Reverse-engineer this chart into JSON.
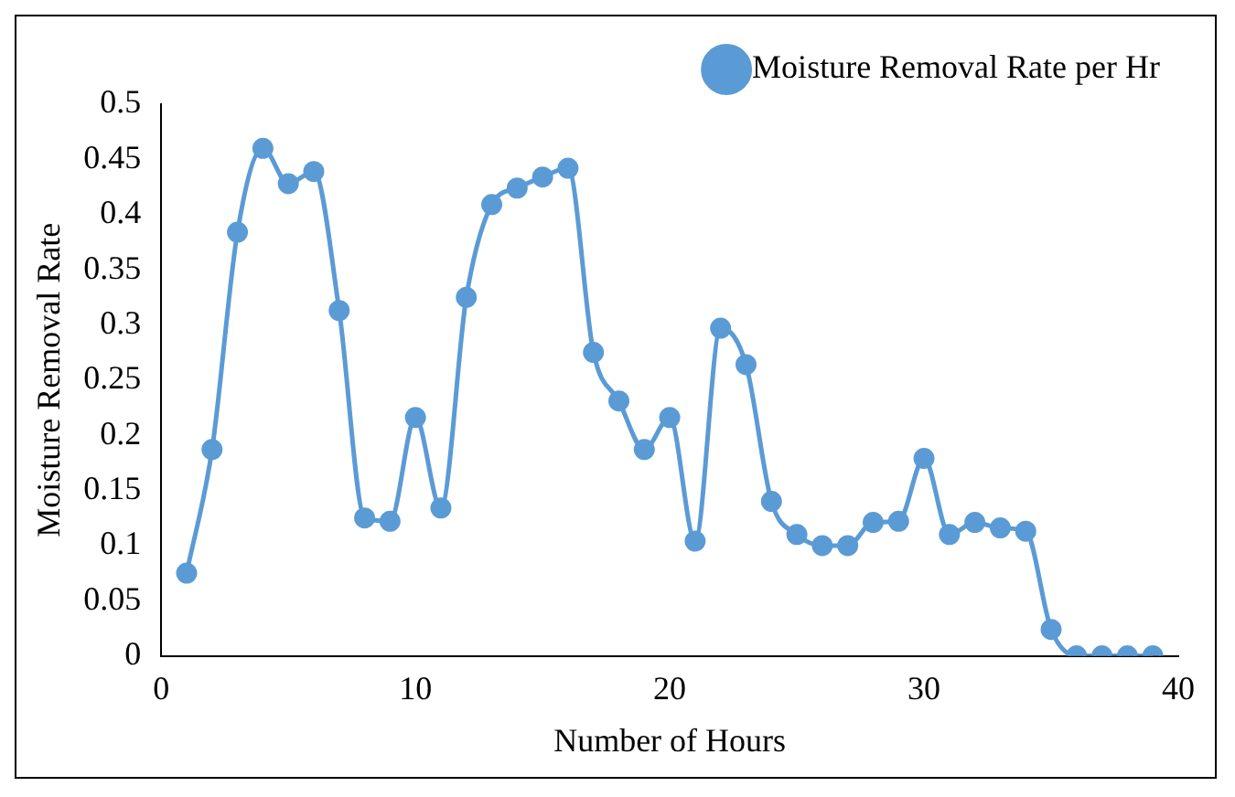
{
  "chart_data": {
    "type": "line",
    "xlabel": "Number of Hours",
    "ylabel": "Moisture Removal Rate",
    "x": [
      1,
      2,
      3,
      4,
      5,
      6,
      7,
      8,
      9,
      10,
      11,
      12,
      13,
      14,
      15,
      16,
      17,
      18,
      19,
      20,
      21,
      22,
      23,
      24,
      25,
      26,
      27,
      28,
      29,
      30,
      31,
      32,
      33,
      34,
      35,
      36,
      37,
      38,
      39
    ],
    "series": [
      {
        "name": "Moisture Removal Rate per Hr",
        "color": "#5b9bd5",
        "values": [
          0.075,
          0.187,
          0.384,
          0.46,
          0.428,
          0.439,
          0.313,
          0.125,
          0.122,
          0.216,
          0.134,
          0.325,
          0.409,
          0.424,
          0.434,
          0.442,
          0.275,
          0.231,
          0.187,
          0.216,
          0.104,
          0.297,
          0.264,
          0.14,
          0.11,
          0.1,
          0.1,
          0.121,
          0.122,
          0.179,
          0.11,
          0.121,
          0.116,
          0.113,
          0.024,
          0,
          0,
          0,
          0
        ]
      }
    ],
    "xlim": [
      0,
      40
    ],
    "xticks": [
      0,
      10,
      20,
      30,
      40
    ],
    "ylim": [
      0,
      0.5
    ],
    "yticks": [
      0,
      0.05,
      0.1,
      0.15,
      0.2,
      0.25,
      0.3,
      0.35,
      0.4,
      0.45,
      0.5
    ],
    "legend": "top right",
    "marker": "circle",
    "line_style": "solid",
    "grid": false
  }
}
